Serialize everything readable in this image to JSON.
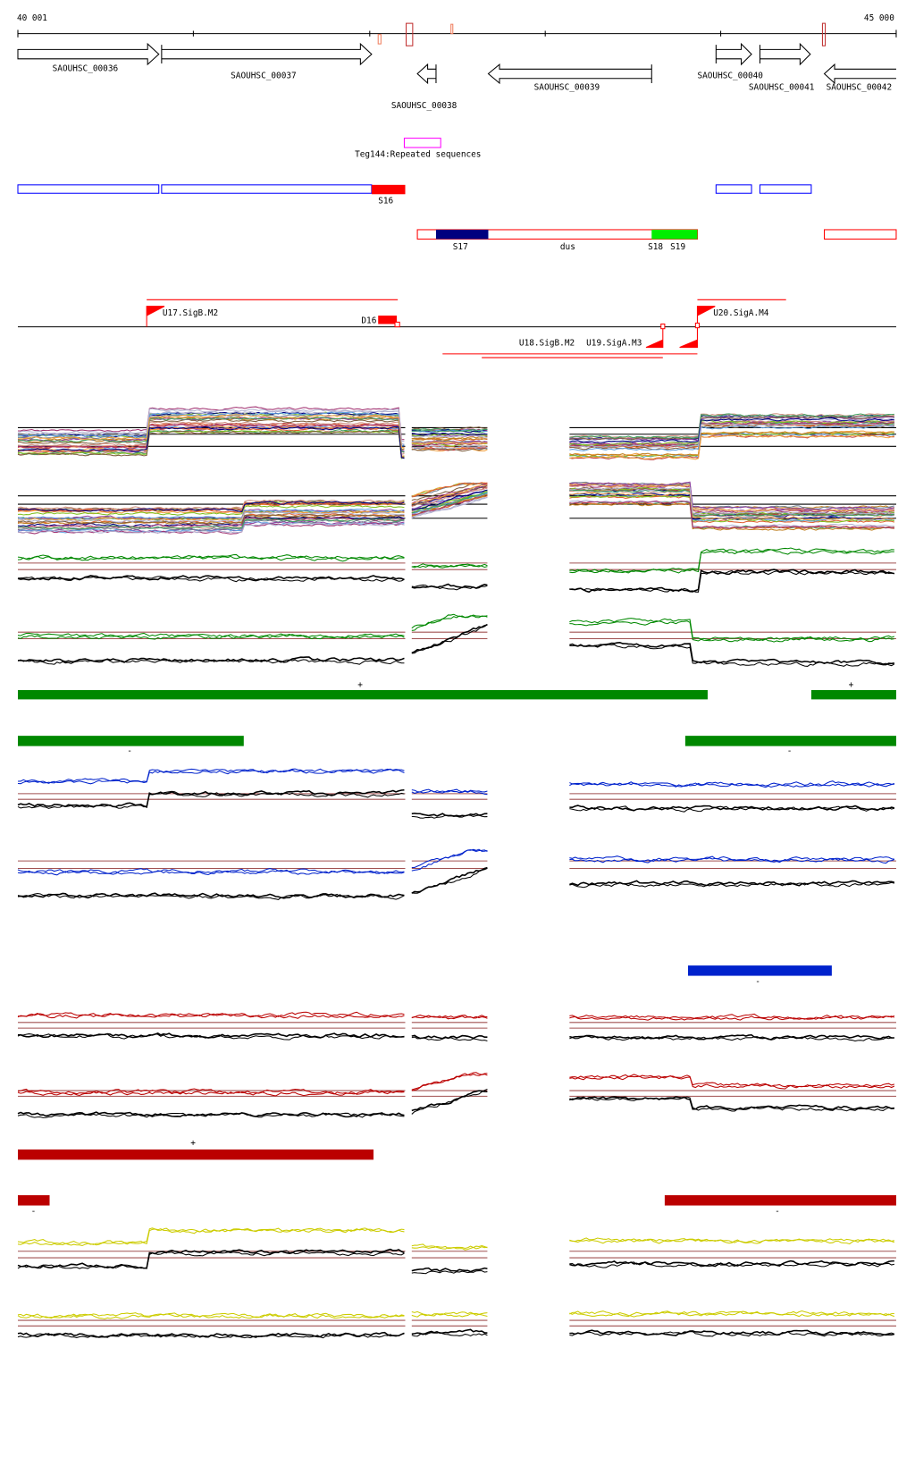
{
  "axis": {
    "start_label": "40 001",
    "end_label": "45 000"
  },
  "genes": [
    {
      "id": "SAOUHSC_00036",
      "strand": "+"
    },
    {
      "id": "SAOUHSC_00037",
      "strand": "+"
    },
    {
      "id": "SAOUHSC_00038",
      "strand": "-"
    },
    {
      "id": "SAOUHSC_00039",
      "strand": "-"
    },
    {
      "id": "SAOUHSC_00040",
      "strand": "+"
    },
    {
      "id": "SAOUHSC_00041",
      "strand": "+"
    },
    {
      "id": "SAOUHSC_00042",
      "strand": "-"
    }
  ],
  "repeat_label": "Teg144:Repeated sequences",
  "segments": {
    "s16": "S16",
    "s17": "S17",
    "dus": "dus",
    "s18": "S18",
    "s19": "S19"
  },
  "promoters": {
    "u17": "U17.SigB.M2",
    "d16": "D16",
    "u20": "U20.SigA.M4",
    "u18": "U18.SigB.M2",
    "u19": "U19.SigA.M3"
  },
  "strand_marks": {
    "plus": "+",
    "minus": "-"
  },
  "colors": {
    "gene_outline": "#000000",
    "segment_outline": "#0000ff",
    "segment_red": "#ff0000",
    "s17": "#00007f",
    "s18_s19": "#00ff00",
    "repeat": "#ff00ff",
    "green_track": "#008800",
    "blue_track": "#0022cc",
    "red_track": "#bb0000",
    "yellow_track": "#cccc00",
    "reference_line": "#a05050"
  }
}
